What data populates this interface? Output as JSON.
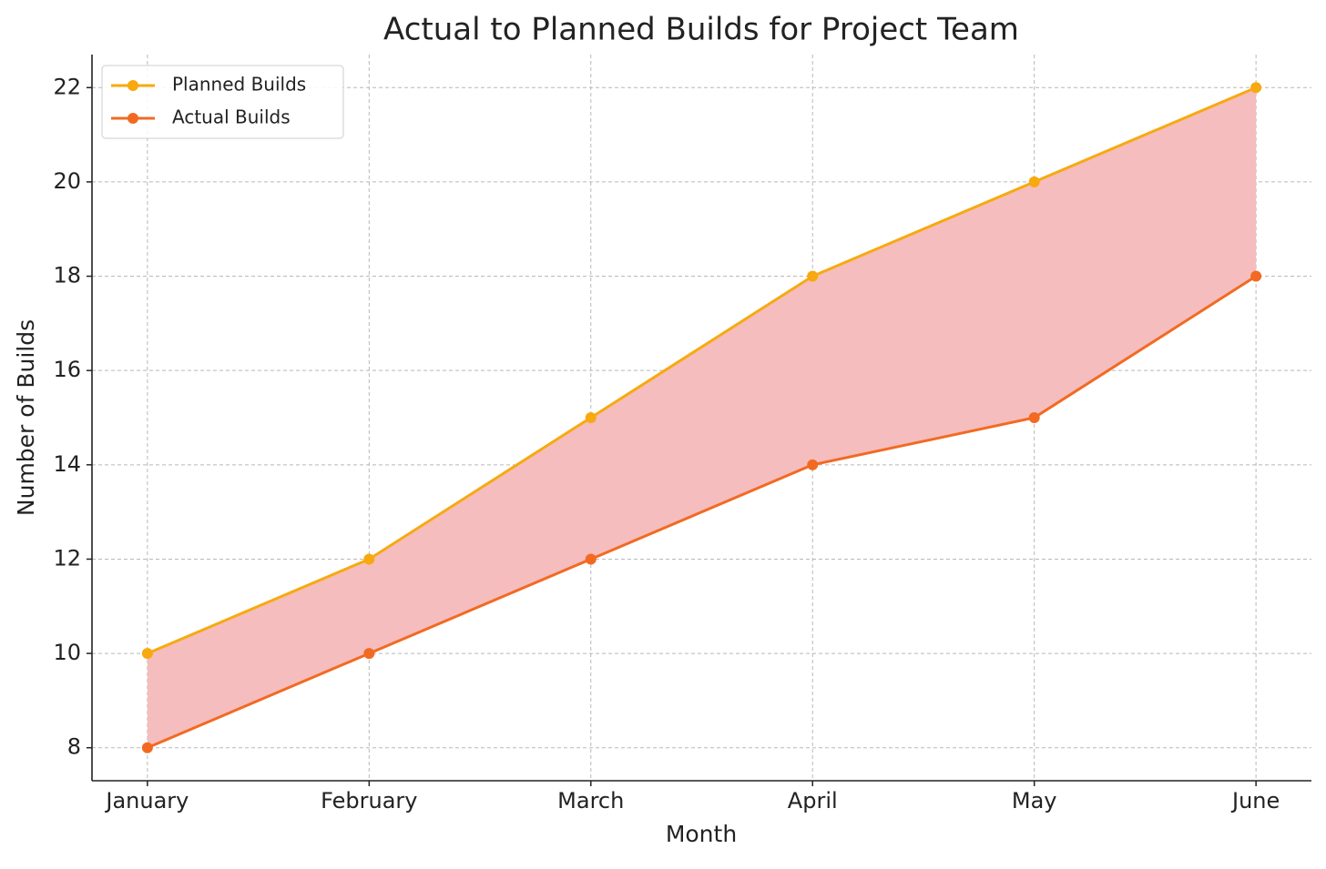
{
  "chart_data": {
    "type": "line",
    "title": "Actual to Planned Builds for Project Team",
    "x_label": "Month",
    "y_label": "Number of Builds",
    "categories": [
      "January",
      "February",
      "March",
      "April",
      "May",
      "June"
    ],
    "series": [
      {
        "name": "Planned Builds",
        "color": "#f7a90f",
        "values": [
          10,
          12,
          15,
          18,
          20,
          22
        ]
      },
      {
        "name": "Actual Builds",
        "color": "#f26a22",
        "values": [
          8,
          10,
          12,
          14,
          15,
          18
        ]
      }
    ],
    "fill_between_color": "#f5bdbd",
    "ylim": [
      7.3,
      22.7
    ],
    "yticks": [
      8,
      10,
      12,
      14,
      16,
      18,
      20,
      22
    ],
    "grid": true,
    "legend": "upper left"
  }
}
